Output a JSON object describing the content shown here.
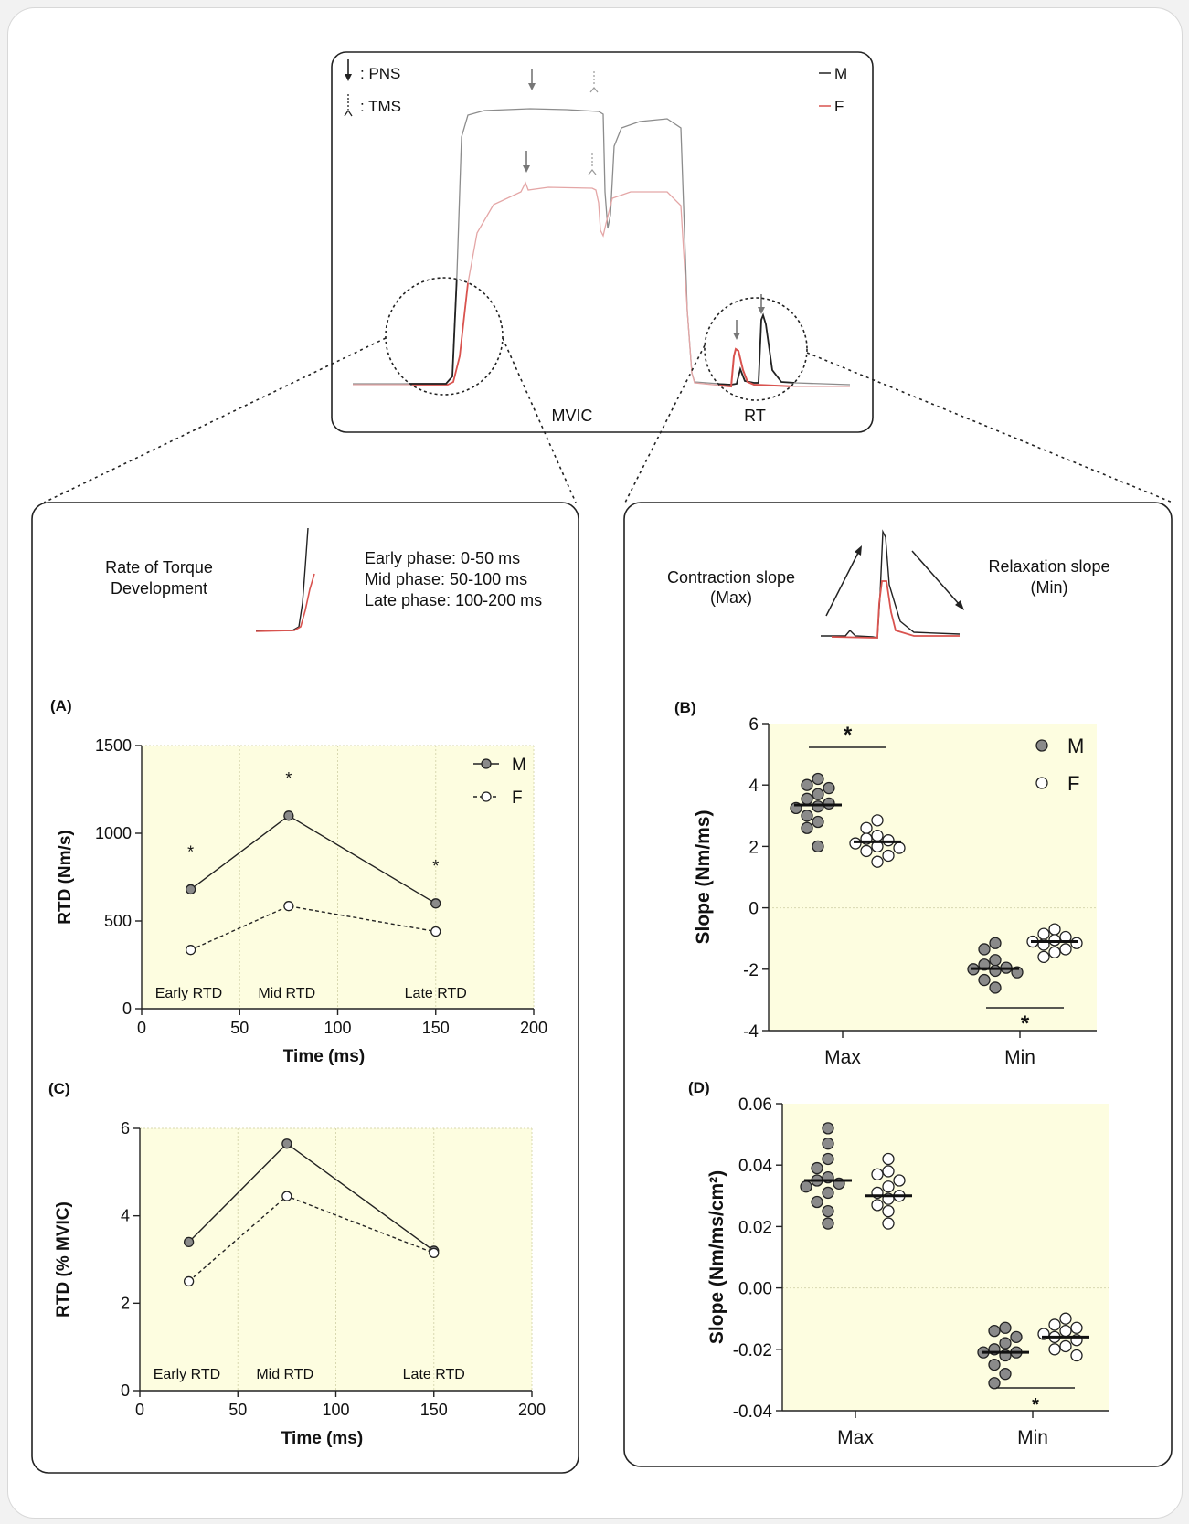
{
  "figure": {
    "top_panel": {
      "legend_pns": ": PNS",
      "legend_tms": ": TMS",
      "legend_m": "M",
      "legend_f": "F",
      "label_mvic": "MVIC",
      "label_rt": "RT",
      "colors": {
        "male": "#8c8c8c",
        "female": "#e0a0a0",
        "female_rt": "#d9534f"
      }
    },
    "left_panel": {
      "title": "Rate of Torque Development",
      "title_line1": "Rate of Torque",
      "title_line2": "Development",
      "phases": [
        "Early phase: 0-50 ms",
        "Mid phase: 50-100 ms",
        "Late phase: 100-200 ms"
      ]
    },
    "right_panel": {
      "contraction_line1": "Contraction slope",
      "contraction_line2": "(Max)",
      "relaxation_line1": "Relaxation slope",
      "relaxation_line2": "(Min)"
    },
    "background_color": "#fdfde0"
  },
  "chart_data": [
    {
      "panel": "(A)",
      "type": "line",
      "x": [
        25,
        75,
        150
      ],
      "series": [
        {
          "name": "M",
          "values": [
            680,
            1100,
            600
          ],
          "marker": "filled"
        },
        {
          "name": "F",
          "values": [
            335,
            585,
            440
          ],
          "marker": "open"
        }
      ],
      "xlabel": "Time (ms)",
      "ylabel": "RTD (Nm/s)",
      "xlim": [
        0,
        200
      ],
      "ylim": [
        0,
        1500
      ],
      "xticks": [
        0,
        50,
        100,
        150,
        200
      ],
      "yticks": [
        0,
        500,
        1000,
        1500
      ],
      "phase_labels": [
        "Early RTD",
        "Mid RTD",
        "Late RTD"
      ],
      "significance": [
        "*",
        "*",
        "*"
      ],
      "legend_position": "top-right"
    },
    {
      "panel": "(C)",
      "type": "line",
      "x": [
        25,
        75,
        150
      ],
      "series": [
        {
          "name": "M",
          "values": [
            3.4,
            5.65,
            3.2
          ],
          "marker": "filled"
        },
        {
          "name": "F",
          "values": [
            2.5,
            4.45,
            3.15
          ],
          "marker": "open"
        }
      ],
      "xlabel": "Time (ms)",
      "ylabel": "RTD (% MVIC)",
      "xlim": [
        0,
        200
      ],
      "ylim": [
        0,
        6
      ],
      "xticks": [
        0,
        50,
        100,
        150,
        200
      ],
      "yticks": [
        0,
        2,
        4,
        6
      ],
      "phase_labels": [
        "Early RTD",
        "Mid RTD",
        "Late RTD"
      ]
    },
    {
      "panel": "(B)",
      "type": "scatter",
      "categories": [
        "Max",
        "Min"
      ],
      "ylabel": "Slope (Nm/ms)",
      "ylim": [
        -4,
        6
      ],
      "yticks": [
        -4,
        -2,
        0,
        2,
        4,
        6
      ],
      "series": [
        {
          "name": "M",
          "marker": "filled",
          "Max": [
            4.2,
            4.0,
            3.9,
            3.7,
            3.55,
            3.4,
            3.3,
            3.25,
            3.0,
            2.8,
            2.6,
            2.0
          ],
          "Max_mean": 3.35,
          "Min": [
            -1.15,
            -1.35,
            -1.7,
            -1.85,
            -1.95,
            -2.0,
            -2.05,
            -2.1,
            -2.35,
            -2.6
          ],
          "Min_mean": -1.98
        },
        {
          "name": "F",
          "marker": "open",
          "Max": [
            2.85,
            2.6,
            2.35,
            2.25,
            2.2,
            2.1,
            2.0,
            1.95,
            1.85,
            1.7,
            1.5
          ],
          "Max_mean": 2.15,
          "Min": [
            -0.7,
            -0.85,
            -0.95,
            -1.05,
            -1.1,
            -1.15,
            -1.2,
            -1.35,
            -1.45,
            -1.6
          ],
          "Min_mean": -1.1
        }
      ],
      "significance": [
        {
          "category": "Max",
          "mark": "*",
          "position": "above"
        },
        {
          "category": "Min",
          "mark": "*",
          "position": "below"
        }
      ],
      "legend_position": "top-right"
    },
    {
      "panel": "(D)",
      "type": "scatter",
      "categories": [
        "Max",
        "Min"
      ],
      "ylabel": "Slope (Nm/ms/cm²)",
      "ylim": [
        -0.04,
        0.06
      ],
      "yticks": [
        -0.04,
        -0.02,
        0.0,
        0.02,
        0.04,
        0.06
      ],
      "ytick_labels": [
        "-0.04",
        "-0.02",
        "0.00",
        "0.02",
        "0.04",
        "0.06"
      ],
      "series": [
        {
          "name": "M",
          "marker": "filled",
          "Max": [
            0.052,
            0.047,
            0.042,
            0.039,
            0.036,
            0.035,
            0.034,
            0.033,
            0.031,
            0.028,
            0.025,
            0.021
          ],
          "Max_mean": 0.035,
          "Min": [
            -0.013,
            -0.014,
            -0.016,
            -0.018,
            -0.02,
            -0.021,
            -0.021,
            -0.022,
            -0.025,
            -0.028,
            -0.031
          ],
          "Min_mean": -0.021
        },
        {
          "name": "F",
          "marker": "open",
          "Max": [
            0.042,
            0.038,
            0.037,
            0.035,
            0.033,
            0.031,
            0.03,
            0.029,
            0.027,
            0.025,
            0.021
          ],
          "Max_mean": 0.03,
          "Min": [
            -0.01,
            -0.012,
            -0.013,
            -0.014,
            -0.015,
            -0.016,
            -0.017,
            -0.019,
            -0.02,
            -0.022
          ],
          "Min_mean": -0.016
        }
      ],
      "significance": [
        {
          "category": "Min",
          "mark": "*",
          "position": "below"
        }
      ]
    }
  ]
}
